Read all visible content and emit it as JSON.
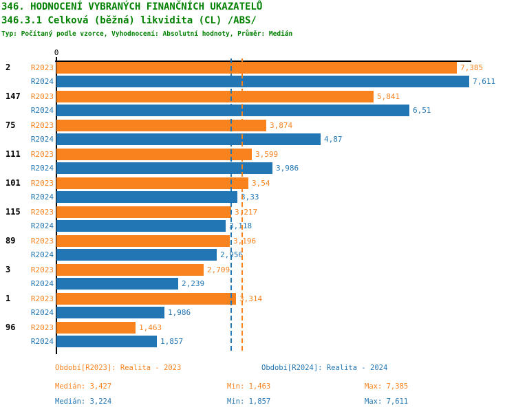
{
  "header": {
    "title": "346. HODNOCENÍ VYBRANÝCH FINANČNÍCH UKAZATELŮ",
    "subtitle": "346.3.1 Celková (běžná) likvidita (CL) /ABS/",
    "meta": "Typ: Počítaný podle vzorce, Vyhodnocení: Absolutní hodnoty, Průměr: Medián",
    "title_color": "#008000"
  },
  "chart_data": {
    "type": "bar",
    "orientation": "horizontal",
    "x_axis": {
      "origin_label": "0",
      "min": 0,
      "max": 7.65,
      "grid": false
    },
    "categories": [
      "2",
      "147",
      "75",
      "111",
      "101",
      "115",
      "89",
      "3",
      "1",
      "96"
    ],
    "series": [
      {
        "name": "R2023",
        "color": "#F8821E",
        "values": [
          7.385,
          5.841,
          3.874,
          3.599,
          3.54,
          3.217,
          3.196,
          2.709,
          3.314,
          1.463
        ],
        "labels": [
          "7,385",
          "5,841",
          "3,874",
          "3,599",
          "3,54",
          "3,217",
          "3,196",
          "2,709",
          "3,314",
          "1,463"
        ]
      },
      {
        "name": "R2024",
        "color": "#2276B4",
        "values": [
          7.611,
          6.51,
          4.87,
          3.986,
          3.33,
          3.118,
          2.956,
          2.239,
          1.986,
          1.857
        ],
        "labels": [
          "7,611",
          "6,51",
          "4,87",
          "3,986",
          "3,33",
          "3,118",
          "2,956",
          "2,239",
          "1,986",
          "1,857"
        ]
      }
    ],
    "median_lines": [
      {
        "series": "R2023",
        "value": 3.427,
        "color": "#F8821E"
      },
      {
        "series": "R2024",
        "value": 3.224,
        "color": "#2276B4"
      }
    ],
    "legend_position": "bottom"
  },
  "footer": {
    "legend_2023": "Období[R2023]: Realita - 2023",
    "legend_2024": "Období[R2024]: Realita - 2024",
    "stats_2023": {
      "median": "Medián: 3,427",
      "min": "Min: 1,463",
      "max": "Max: 7,385"
    },
    "stats_2024": {
      "median": "Medián: 3,224",
      "min": "Min: 1,857",
      "max": "Max: 7,611"
    }
  }
}
